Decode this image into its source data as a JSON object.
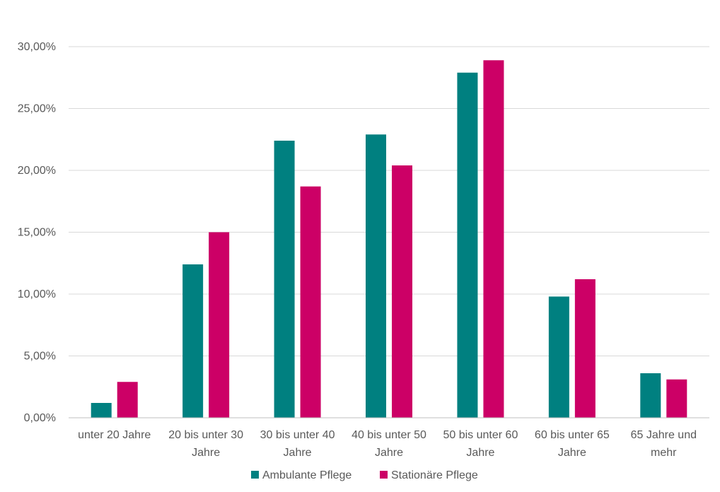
{
  "chart_data": {
    "type": "bar",
    "categories": [
      [
        "unter 20 Jahre"
      ],
      [
        "20 bis unter 30",
        "Jahre"
      ],
      [
        "30 bis unter 40",
        "Jahre"
      ],
      [
        "40 bis unter 50",
        "Jahre"
      ],
      [
        "50 bis unter 60",
        "Jahre"
      ],
      [
        "60 bis unter 65",
        "Jahre"
      ],
      [
        "65 Jahre und",
        "mehr"
      ]
    ],
    "series": [
      {
        "name": "Ambulante Pflege",
        "color": "#008080",
        "values": [
          1.2,
          12.4,
          22.4,
          22.9,
          27.9,
          9.8,
          3.6
        ]
      },
      {
        "name": "Stationäre Pflege",
        "color": "#cc0066",
        "values": [
          2.9,
          15.0,
          18.7,
          20.4,
          28.9,
          11.2,
          3.1
        ]
      }
    ],
    "ylim": [
      0,
      30
    ],
    "yticks": [
      0,
      5,
      10,
      15,
      20,
      25,
      30
    ],
    "ytick_labels": [
      "0,00%",
      "5,00%",
      "10,00%",
      "15,00%",
      "20,00%",
      "25,00%",
      "30,00%"
    ],
    "title": "",
    "xlabel": "",
    "ylabel": "",
    "grid": true,
    "legend_position": "bottom"
  }
}
